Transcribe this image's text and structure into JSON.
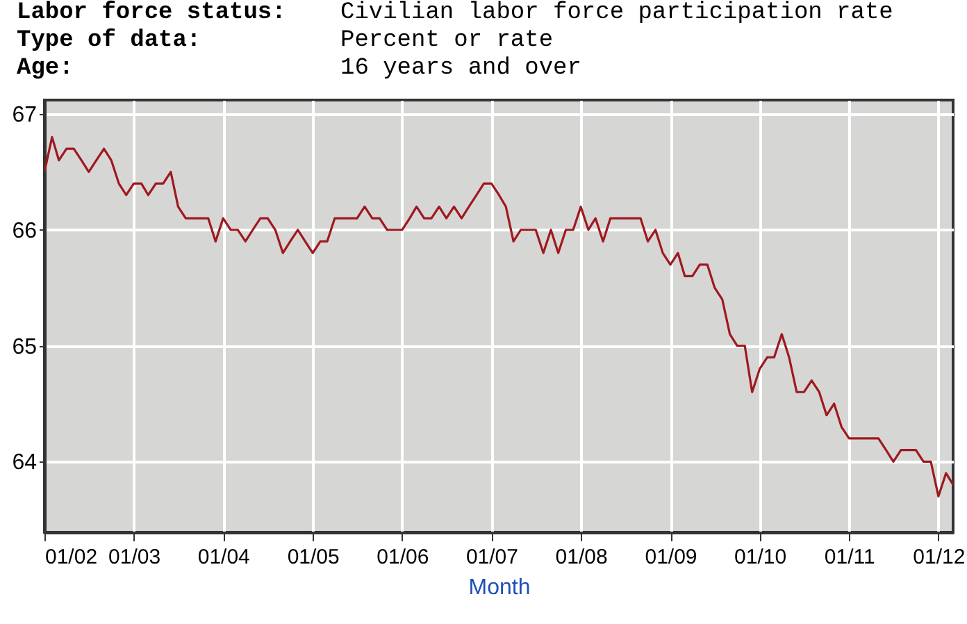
{
  "chart_data": {
    "type": "line",
    "annotations": [
      "Labor force status:",
      "Civilian labor force participation rate",
      "Type of data:",
      "Percent or rate",
      "Age:",
      "16 years and over"
    ],
    "xlabel": "Month",
    "x": [
      "2002-01",
      "2002-02",
      "2002-03",
      "2002-04",
      "2002-05",
      "2002-06",
      "2002-07",
      "2002-08",
      "2002-09",
      "2002-10",
      "2002-11",
      "2002-12",
      "2003-01",
      "2003-02",
      "2003-03",
      "2003-04",
      "2003-05",
      "2003-06",
      "2003-07",
      "2003-08",
      "2003-09",
      "2003-10",
      "2003-11",
      "2003-12",
      "2004-01",
      "2004-02",
      "2004-03",
      "2004-04",
      "2004-05",
      "2004-06",
      "2004-07",
      "2004-08",
      "2004-09",
      "2004-10",
      "2004-11",
      "2004-12",
      "2005-01",
      "2005-02",
      "2005-03",
      "2005-04",
      "2005-05",
      "2005-06",
      "2005-07",
      "2005-08",
      "2005-09",
      "2005-10",
      "2005-11",
      "2005-12",
      "2006-01",
      "2006-02",
      "2006-03",
      "2006-04",
      "2006-05",
      "2006-06",
      "2006-07",
      "2006-08",
      "2006-09",
      "2006-10",
      "2006-11",
      "2006-12",
      "2007-01",
      "2007-02",
      "2007-03",
      "2007-04",
      "2007-05",
      "2007-06",
      "2007-07",
      "2007-08",
      "2007-09",
      "2007-10",
      "2007-11",
      "2007-12",
      "2008-01",
      "2008-02",
      "2008-03",
      "2008-04",
      "2008-05",
      "2008-06",
      "2008-07",
      "2008-08",
      "2008-09",
      "2008-10",
      "2008-11",
      "2008-12",
      "2009-01",
      "2009-02",
      "2009-03",
      "2009-04",
      "2009-05",
      "2009-06",
      "2009-07",
      "2009-08",
      "2009-09",
      "2009-10",
      "2009-11",
      "2009-12",
      "2010-01",
      "2010-02",
      "2010-03",
      "2010-04",
      "2010-05",
      "2010-06",
      "2010-07",
      "2010-08",
      "2010-09",
      "2010-10",
      "2010-11",
      "2010-12",
      "2011-01",
      "2011-02",
      "2011-03",
      "2011-04",
      "2011-05",
      "2011-06",
      "2011-07",
      "2011-08",
      "2011-09",
      "2011-10",
      "2011-11",
      "2011-12",
      "2012-01",
      "2012-02",
      "2012-03"
    ],
    "series": [
      {
        "color": "#a01820",
        "values": [
          66.5,
          66.8,
          66.6,
          66.7,
          66.7,
          66.6,
          66.5,
          66.6,
          66.7,
          66.6,
          66.4,
          66.3,
          66.4,
          66.4,
          66.3,
          66.4,
          66.4,
          66.5,
          66.2,
          66.1,
          66.1,
          66.1,
          66.1,
          65.9,
          66.1,
          66.0,
          66.0,
          65.9,
          66.0,
          66.1,
          66.1,
          66.0,
          65.8,
          65.9,
          66.0,
          65.9,
          65.8,
          65.9,
          65.9,
          66.1,
          66.1,
          66.1,
          66.1,
          66.2,
          66.1,
          66.1,
          66.0,
          66.0,
          66.0,
          66.1,
          66.2,
          66.1,
          66.1,
          66.2,
          66.1,
          66.2,
          66.1,
          66.2,
          66.3,
          66.4,
          66.4,
          66.3,
          66.2,
          65.9,
          66.0,
          66.0,
          66.0,
          65.8,
          66.0,
          65.8,
          66.0,
          66.0,
          66.2,
          66.0,
          66.1,
          65.9,
          66.1,
          66.1,
          66.1,
          66.1,
          66.1,
          65.9,
          66.0,
          65.8,
          65.7,
          65.8,
          65.6,
          65.6,
          65.7,
          65.7,
          65.5,
          65.4,
          65.1,
          65.0,
          65.0,
          64.6,
          64.8,
          64.9,
          64.9,
          65.1,
          64.9,
          64.6,
          64.6,
          64.7,
          64.6,
          64.4,
          64.5,
          64.3,
          64.2,
          64.2,
          64.2,
          64.2,
          64.2,
          64.1,
          64.0,
          64.1,
          64.1,
          64.1,
          64.0,
          64.0,
          63.7,
          63.9,
          63.8
        ]
      }
    ],
    "xlim": [
      "2002-01",
      "2012-03"
    ],
    "xticks": [
      {
        "value": "2002-01",
        "label": "01/02"
      },
      {
        "value": "2003-01",
        "label": "01/03"
      },
      {
        "value": "2004-01",
        "label": "01/04"
      },
      {
        "value": "2005-01",
        "label": "01/05"
      },
      {
        "value": "2006-01",
        "label": "01/06"
      },
      {
        "value": "2007-01",
        "label": "01/07"
      },
      {
        "value": "2008-01",
        "label": "01/08"
      },
      {
        "value": "2009-01",
        "label": "01/09"
      },
      {
        "value": "2010-01",
        "label": "01/10"
      },
      {
        "value": "2011-01",
        "label": "01/11"
      },
      {
        "value": "2012-01",
        "label": "01/12"
      }
    ],
    "ylim": [
      63.39,
      67.12
    ],
    "yticks": [
      64,
      65,
      66,
      67
    ],
    "grid": true
  }
}
